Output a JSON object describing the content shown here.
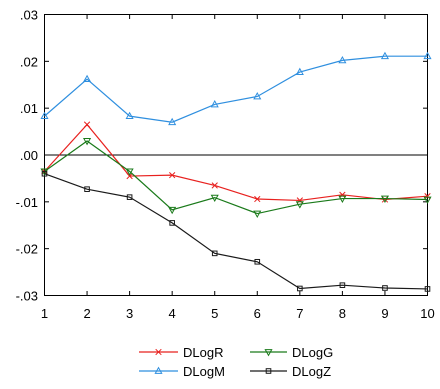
{
  "chart_data": {
    "type": "line",
    "title": "",
    "xlabel": "",
    "ylabel": "",
    "x": [
      1,
      2,
      3,
      4,
      5,
      6,
      7,
      8,
      9,
      10
    ],
    "xlim": [
      1,
      10
    ],
    "ylim": [
      -0.03,
      0.03
    ],
    "x_tick_labels": [
      "1",
      "2",
      "3",
      "4",
      "5",
      "6",
      "7",
      "8",
      "9",
      "10"
    ],
    "y_tick_values": [
      0.03,
      0.02,
      0.01,
      0.0,
      -0.01,
      -0.02,
      -0.03
    ],
    "y_tick_labels": [
      ".03",
      ".02",
      ".01",
      ".00",
      "-.01",
      "-.02",
      "-.03"
    ],
    "zero_line": true,
    "grid": false,
    "legend_position": "bottom",
    "series": [
      {
        "name": "DLogR",
        "color": "#e8211f",
        "marker": "x",
        "values": [
          -0.0035,
          0.0065,
          -0.0045,
          -0.0043,
          -0.0065,
          -0.0094,
          -0.0097,
          -0.0085,
          -0.0095,
          -0.0088
        ]
      },
      {
        "name": "DLogG",
        "color": "#1a7a1a",
        "marker": "triangle-down",
        "values": [
          -0.0035,
          0.003,
          -0.0035,
          -0.0117,
          -0.0091,
          -0.0125,
          -0.0105,
          -0.0093,
          -0.0093,
          -0.0095
        ]
      },
      {
        "name": "DLogM",
        "color": "#2f8fdf",
        "marker": "triangle-up",
        "values": [
          0.0083,
          0.0162,
          0.0083,
          0.007,
          0.0108,
          0.0125,
          0.0177,
          0.0202,
          0.0211,
          0.0211
        ]
      },
      {
        "name": "DLogZ",
        "color": "#1a1a1a",
        "marker": "square",
        "values": [
          -0.004,
          -0.0073,
          -0.009,
          -0.0145,
          -0.021,
          -0.0228,
          -0.0285,
          -0.0278,
          -0.0284,
          -0.0286
        ]
      }
    ]
  }
}
